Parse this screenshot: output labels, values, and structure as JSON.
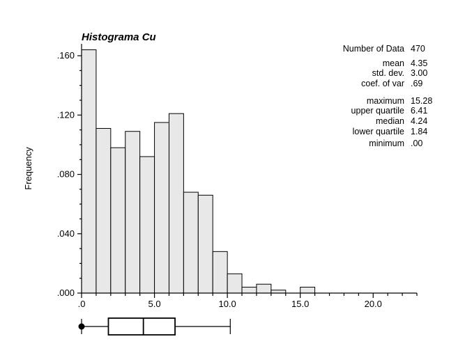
{
  "chart_data": {
    "type": "bar",
    "title": "Histograma Cu",
    "xlabel": "",
    "ylabel": "Frequency",
    "xlim": [
      0,
      23
    ],
    "ylim": [
      0,
      0.168
    ],
    "bin_width": 1.0,
    "bins": [
      {
        "x0": 0,
        "x1": 1,
        "value": 0.164
      },
      {
        "x0": 1,
        "x1": 2,
        "value": 0.111
      },
      {
        "x0": 2,
        "x1": 3,
        "value": 0.098
      },
      {
        "x0": 3,
        "x1": 4,
        "value": 0.109
      },
      {
        "x0": 4,
        "x1": 5,
        "value": 0.092
      },
      {
        "x0": 5,
        "x1": 6,
        "value": 0.115
      },
      {
        "x0": 6,
        "x1": 7,
        "value": 0.121
      },
      {
        "x0": 7,
        "x1": 8,
        "value": 0.068
      },
      {
        "x0": 8,
        "x1": 9,
        "value": 0.066
      },
      {
        "x0": 9,
        "x1": 10,
        "value": 0.028
      },
      {
        "x0": 10,
        "x1": 11,
        "value": 0.013
      },
      {
        "x0": 11,
        "x1": 12,
        "value": 0.004
      },
      {
        "x0": 12,
        "x1": 13,
        "value": 0.006
      },
      {
        "x0": 13,
        "x1": 14,
        "value": 0.002
      },
      {
        "x0": 14,
        "x1": 15,
        "value": 0.0
      },
      {
        "x0": 15,
        "x1": 16,
        "value": 0.004
      },
      {
        "x0": 16,
        "x1": 17,
        "value": 0.0
      },
      {
        "x0": 17,
        "x1": 18,
        "value": 0.0
      },
      {
        "x0": 18,
        "x1": 19,
        "value": 0.0
      },
      {
        "x0": 19,
        "x1": 20,
        "value": 0.0
      },
      {
        "x0": 20,
        "x1": 21,
        "value": 0.0
      },
      {
        "x0": 21,
        "x1": 22,
        "value": 0.0
      },
      {
        "x0": 22,
        "x1": 23,
        "value": 0.0
      }
    ],
    "y_ticks": [
      {
        "value": 0.0,
        "label": ".000"
      },
      {
        "value": 0.04,
        "label": ".040"
      },
      {
        "value": 0.08,
        "label": ".080"
      },
      {
        "value": 0.12,
        "label": ".120"
      },
      {
        "value": 0.16,
        "label": ".160"
      }
    ],
    "x_ticks": [
      {
        "value": 0,
        "label": ".0"
      },
      {
        "value": 5,
        "label": "5.0"
      },
      {
        "value": 10,
        "label": "10.0"
      },
      {
        "value": 15,
        "label": "15.0"
      },
      {
        "value": 20,
        "label": "20.0"
      }
    ],
    "boxplot": {
      "whisker_low": 0.0,
      "q1": 1.84,
      "median": 4.24,
      "mean": 4.35,
      "q3": 6.41,
      "whisker_high": 10.2,
      "min_marker": 0.0
    },
    "stats": [
      {
        "label": "Number of Data",
        "value": "470"
      },
      {
        "label": "mean",
        "value": "4.35"
      },
      {
        "label": "std. dev.",
        "value": "3.00"
      },
      {
        "label": "coef. of var",
        "value": ".69"
      },
      {
        "label": "maximum",
        "value": "15.28"
      },
      {
        "label": "upper quartile",
        "value": "6.41"
      },
      {
        "label": "median",
        "value": "4.24"
      },
      {
        "label": "lower quartile",
        "value": "1.84"
      },
      {
        "label": "minimum",
        "value": ".00"
      }
    ],
    "grid": false,
    "legend": "none"
  }
}
